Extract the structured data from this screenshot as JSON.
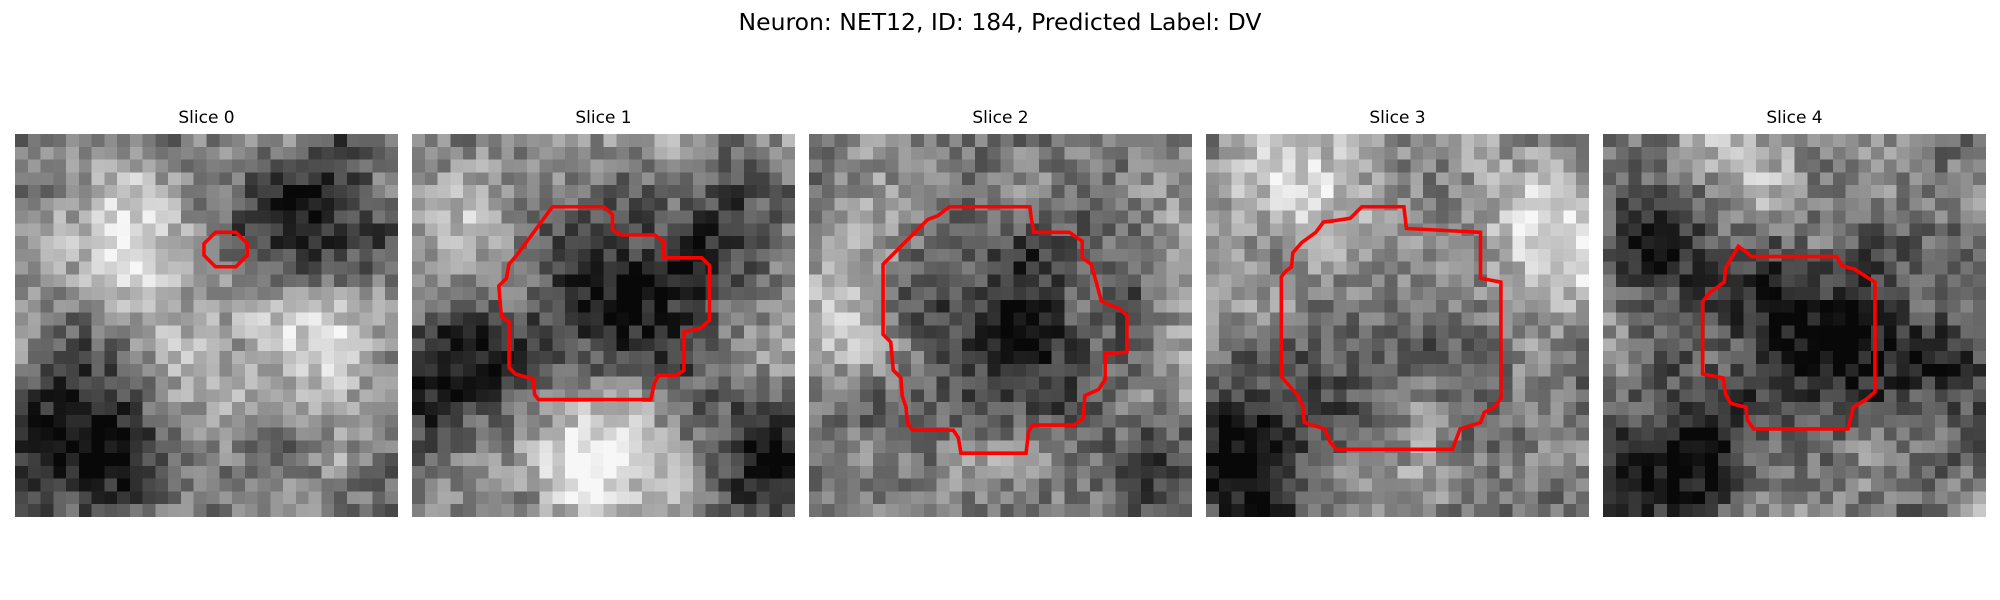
{
  "figure": {
    "title": "Neuron: NET12, ID: 184, Predicted Label: DV"
  },
  "panels": [
    {
      "title": "Slice 0",
      "contour_color": "#ff0000",
      "seed": 11,
      "blobs": [
        [
          0.18,
          0.78,
          0.22,
          -0.55
        ],
        [
          0.75,
          0.25,
          0.2,
          -0.5
        ],
        [
          0.75,
          0.55,
          0.18,
          0.35
        ],
        [
          0.3,
          0.3,
          0.25,
          0.3
        ],
        [
          0.5,
          0.5,
          0.2,
          0.1
        ]
      ]
    },
    {
      "title": "Slice 1",
      "contour_color": "#ff0000",
      "seed": 23,
      "blobs": [
        [
          0.5,
          0.48,
          0.22,
          -0.35
        ],
        [
          0.1,
          0.6,
          0.18,
          -0.45
        ],
        [
          0.8,
          0.3,
          0.16,
          -0.4
        ],
        [
          0.5,
          0.88,
          0.18,
          0.5
        ],
        [
          0.1,
          0.3,
          0.2,
          0.2
        ],
        [
          0.95,
          0.85,
          0.15,
          -0.35
        ]
      ]
    },
    {
      "title": "Slice 2",
      "contour_color": "#ff0000",
      "seed": 37,
      "blobs": [
        [
          0.52,
          0.5,
          0.24,
          -0.45
        ],
        [
          0.05,
          0.5,
          0.15,
          0.3
        ],
        [
          0.95,
          0.85,
          0.15,
          -0.3
        ],
        [
          0.5,
          0.1,
          0.2,
          0.1
        ]
      ]
    },
    {
      "title": "Slice 3",
      "contour_color": "#ff0000",
      "seed": 51,
      "blobs": [
        [
          0.5,
          0.5,
          0.27,
          -0.15
        ],
        [
          0.1,
          0.85,
          0.2,
          -0.55
        ],
        [
          0.88,
          0.25,
          0.18,
          0.35
        ],
        [
          0.2,
          0.15,
          0.2,
          0.25
        ],
        [
          0.5,
          0.92,
          0.15,
          0.2
        ]
      ]
    },
    {
      "title": "Slice 4",
      "contour_color": "#ff0000",
      "seed": 67,
      "blobs": [
        [
          0.58,
          0.5,
          0.23,
          -0.45
        ],
        [
          0.12,
          0.3,
          0.18,
          -0.45
        ],
        [
          0.2,
          0.85,
          0.18,
          -0.45
        ],
        [
          0.4,
          0.1,
          0.2,
          0.25
        ],
        [
          0.9,
          0.6,
          0.15,
          -0.25
        ]
      ]
    }
  ]
}
